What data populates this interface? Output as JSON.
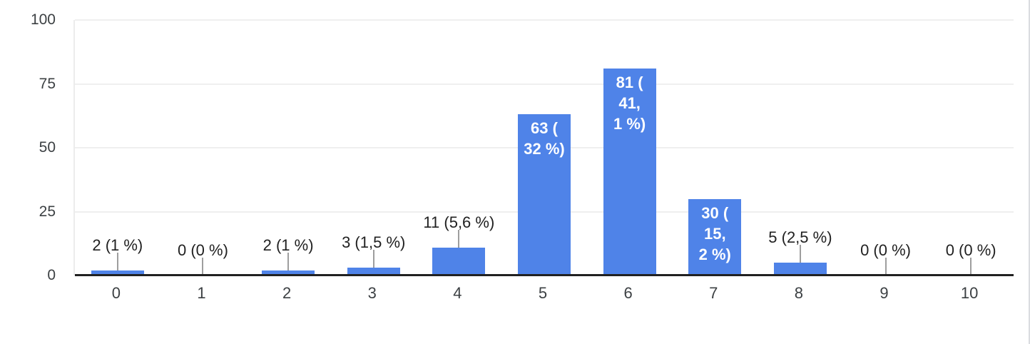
{
  "chart_data": {
    "type": "bar",
    "title": "",
    "categories": [
      "0",
      "1",
      "2",
      "3",
      "4",
      "5",
      "6",
      "7",
      "8",
      "9",
      "10"
    ],
    "values": [
      2,
      0,
      2,
      3,
      11,
      63,
      81,
      30,
      5,
      0,
      0
    ],
    "bars": [
      {
        "category": "0",
        "value": 2,
        "label": "2 (1 %)",
        "label_lines": [
          "2 (1 %)"
        ],
        "label_position": "above"
      },
      {
        "category": "1",
        "value": 0,
        "label": "0 (0 %)",
        "label_lines": [
          "0 (0 %)"
        ],
        "label_position": "above"
      },
      {
        "category": "2",
        "value": 2,
        "label": "2 (1 %)",
        "label_lines": [
          "2 (1 %)"
        ],
        "label_position": "above"
      },
      {
        "category": "3",
        "value": 3,
        "label": "3 (1,5 %)",
        "label_lines": [
          "3 (1,5 %)"
        ],
        "label_position": "above"
      },
      {
        "category": "4",
        "value": 11,
        "label": "11 (5,6 %)",
        "label_lines": [
          "11 (5,6 %)"
        ],
        "label_position": "above"
      },
      {
        "category": "5",
        "value": 63,
        "label": "63 (32 %)",
        "label_lines": [
          "63 (",
          "32 %)"
        ],
        "label_position": "inside"
      },
      {
        "category": "6",
        "value": 81,
        "label": "81 (41,1 %)",
        "label_lines": [
          "81 (",
          "41,",
          "1 %)"
        ],
        "label_position": "inside"
      },
      {
        "category": "7",
        "value": 30,
        "label": "30 (15,2 %)",
        "label_lines": [
          "30 (",
          "15,",
          "2 %)"
        ],
        "label_position": "inside"
      },
      {
        "category": "8",
        "value": 5,
        "label": "5 (2,5 %)",
        "label_lines": [
          "5 (2,5 %)"
        ],
        "label_position": "above"
      },
      {
        "category": "9",
        "value": 0,
        "label": "0 (0 %)",
        "label_lines": [
          "0 (0 %)"
        ],
        "label_position": "above"
      },
      {
        "category": "10",
        "value": 0,
        "label": "0 (0 %)",
        "label_lines": [
          "0 (0 %)"
        ],
        "label_position": "above"
      }
    ],
    "xlabel": "",
    "ylabel": "",
    "y_ticks": [
      0,
      25,
      50,
      75,
      100
    ],
    "ylim": [
      0,
      100
    ],
    "grid": true,
    "legend": "none"
  },
  "colors": {
    "bar": "#4f83e8",
    "label_inside": "#ffffff",
    "label_outside": "#212121",
    "axis_tick_text": "#3c4043",
    "gridline": "#efefef",
    "baseline": "#212121",
    "stem": "#9e9e9e",
    "card_border": "#dadce0",
    "background": "#ffffff"
  }
}
